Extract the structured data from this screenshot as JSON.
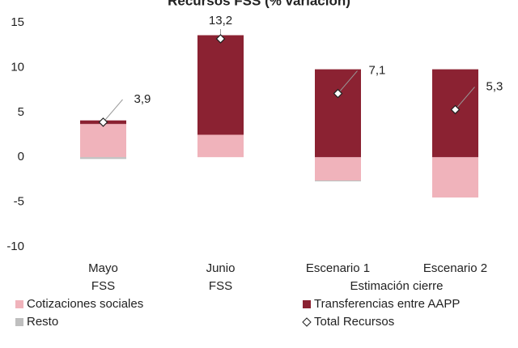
{
  "chart_data": {
    "type": "bar",
    "stacked": true,
    "title": "Recursos FSS (% variación)",
    "categories": [
      [
        "Mayo",
        "FSS"
      ],
      [
        "Junio",
        "FSS"
      ],
      [
        "Escenario 1"
      ],
      [
        "Escenario 2"
      ]
    ],
    "group_label": "Estimación cierre",
    "series": [
      {
        "name": "Cotizaciones sociales",
        "color": "#f0b3bb",
        "values": [
          3.7,
          2.5,
          -2.6,
          -4.5
        ]
      },
      {
        "name": "Transferencias entre AAPP",
        "color": "#8b2232",
        "values": [
          0.4,
          11.1,
          9.8,
          9.8
        ]
      },
      {
        "name": "Resto",
        "color": "#bfbfbf",
        "values": [
          -0.2,
          0,
          -0.1,
          0
        ]
      },
      {
        "name": "Total Recursos",
        "type": "marker",
        "marker": "diamond",
        "color": "#ffffff",
        "values": [
          3.9,
          13.2,
          7.1,
          5.3
        ],
        "value_labels": [
          "3,9",
          "13,2",
          "7,1",
          "5,3"
        ]
      }
    ],
    "ylim": [
      -10,
      15
    ],
    "yticks": [
      -10,
      -5,
      0,
      5,
      10,
      15
    ],
    "grid": false
  }
}
